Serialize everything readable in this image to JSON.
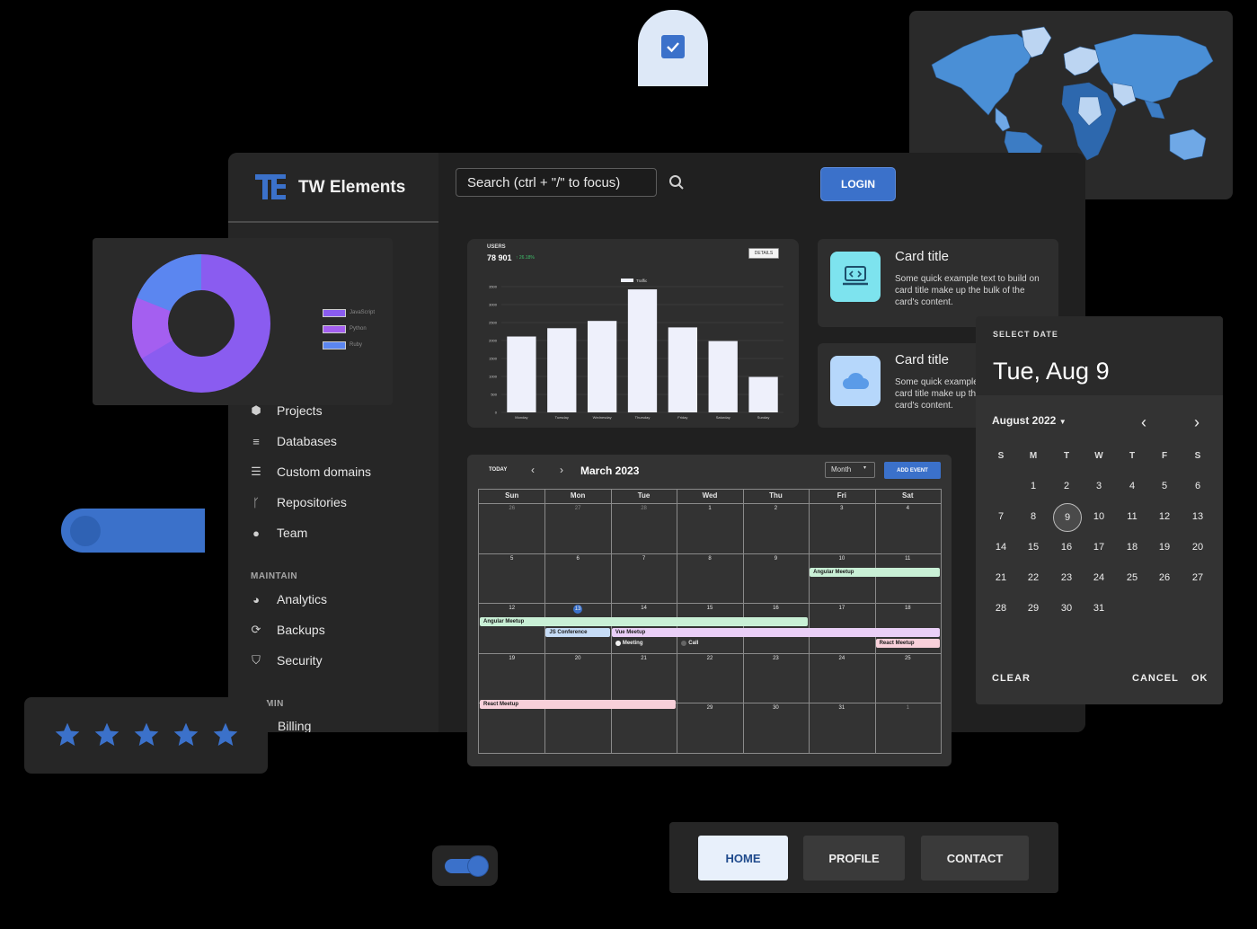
{
  "brand": {
    "name": "TW Elements"
  },
  "search": {
    "placeholder": "Search (ctrl + \"/\" to focus)"
  },
  "login": {
    "label": "LOGIN"
  },
  "sidebar": {
    "items": [
      {
        "label": "Projects",
        "icon": "cube-icon"
      },
      {
        "label": "Databases",
        "icon": "database-icon"
      },
      {
        "label": "Custom domains",
        "icon": "lines-icon"
      },
      {
        "label": "Repositories",
        "icon": "branch-icon"
      },
      {
        "label": "Team",
        "icon": "team-icon"
      }
    ],
    "maintain_heading": "MAINTAIN",
    "maintain_items": [
      {
        "label": "Analytics",
        "icon": "pie-icon"
      },
      {
        "label": "Backups",
        "icon": "sync-icon"
      },
      {
        "label": "Security",
        "icon": "shield-icon"
      }
    ],
    "admin_heading": "MIN",
    "admin_items": [
      {
        "label": "Billing"
      }
    ]
  },
  "users_chart": {
    "users_label": "USERS",
    "users_count": "78 901",
    "users_change": "↑ 26.18%",
    "details_label": "DETAILS",
    "legend": "Traffic"
  },
  "chart_data": {
    "type": "bar",
    "categories": [
      "Monday",
      "Tuesday",
      "Wednesday",
      "Thursday",
      "Friday",
      "Saturday",
      "Sunday"
    ],
    "series": [
      {
        "name": "Traffic",
        "values": [
          2112,
          2343,
          2545,
          3423,
          2365,
          1985,
          987
        ]
      }
    ],
    "yticks": [
      "0",
      "500",
      "1000",
      "1500",
      "2000",
      "2500",
      "3000",
      "3500"
    ],
    "ylim": [
      0,
      3500
    ],
    "grid": true,
    "legend_position": "top"
  },
  "cards": [
    {
      "title": "Card title",
      "text": "Some quick example text to build on card title make up the bulk of the card's content.",
      "icon": "code-laptop-icon"
    },
    {
      "title": "Card title",
      "text": "Some quick example text to build on card title make up the bulk of the card's content.",
      "icon": "cloud-icon"
    }
  ],
  "calendar": {
    "today_label": "TODAY",
    "month_title": "March 2023",
    "view_select": "Month",
    "add_event_label": "ADD EVENT",
    "weekdays": [
      "Sun",
      "Mon",
      "Tue",
      "Wed",
      "Thu",
      "Fri",
      "Sat"
    ],
    "weeks": [
      [
        "26",
        "27",
        "28",
        "1",
        "2",
        "3",
        "4"
      ],
      [
        "5",
        "6",
        "7",
        "8",
        "9",
        "10",
        "11"
      ],
      [
        "12",
        "13",
        "14",
        "15",
        "16",
        "17",
        "18"
      ],
      [
        "19",
        "20",
        "21",
        "22",
        "23",
        "24",
        "25"
      ],
      [
        "26",
        "27",
        "28",
        "29",
        "30",
        "31",
        "1"
      ]
    ],
    "events": {
      "angular_1": "Angular Meetup",
      "angular_2": "Angular Meetup",
      "js_conf": "JS Conference",
      "vue": "Vue Meetup",
      "meeting": "Meeting",
      "call": "Call",
      "react_1": "React Meetup",
      "react_2": "React Meetup"
    }
  },
  "datepicker": {
    "heading": "SELECT DATE",
    "selected": "Tue, Aug 9",
    "month_label": "August 2022",
    "weekdays": [
      "S",
      "M",
      "T",
      "W",
      "T",
      "F",
      "S"
    ],
    "days": [
      "1",
      "2",
      "3",
      "4",
      "5",
      "6",
      "7",
      "8",
      "9",
      "10",
      "11",
      "12",
      "13",
      "14",
      "15",
      "16",
      "17",
      "18",
      "19",
      "20",
      "21",
      "22",
      "23",
      "24",
      "25",
      "26",
      "27",
      "28",
      "29",
      "30",
      "31"
    ],
    "clear_label": "CLEAR",
    "cancel_label": "CANCEL",
    "ok_label": "OK"
  },
  "donut": {
    "legend": [
      "JavaScript",
      "Python",
      "Ruby"
    ],
    "colors": {
      "javascript": "#8a5cf0",
      "python": "#a45ff0",
      "ruby": "#5b86f0"
    }
  },
  "rating": {
    "stars": 5,
    "max": 5
  },
  "tabs": [
    {
      "label": "HOME",
      "active": true
    },
    {
      "label": "PROFILE",
      "active": false
    },
    {
      "label": "CONTACT",
      "active": false
    }
  ],
  "colors": {
    "primary": "#3b71ca",
    "bg": "#000000",
    "panel": "#2a2a2a"
  }
}
